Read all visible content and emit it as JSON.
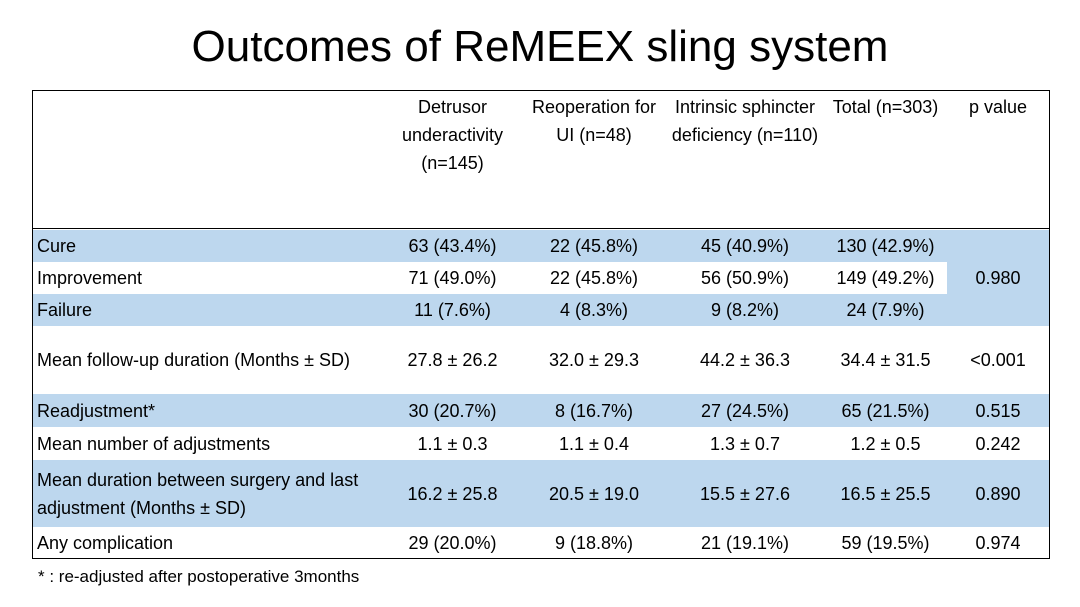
{
  "title": "Outcomes of ReMEEX sling system",
  "headers": [
    "",
    "Detrusor underactivity (n=145)",
    "Reoperation for UI (n=48)",
    "Intrinsic sphincter deficiency (n=110)",
    "Total (n=303)",
    "p value"
  ],
  "rows": [
    {
      "label": "Cure",
      "values": [
        "63 (43.4%)",
        "22 (45.8%)",
        "45 (40.9%)",
        "130 (42.9%)"
      ],
      "p": ""
    },
    {
      "label": "Improvement",
      "values": [
        "71 (49.0%)",
        "22 (45.8%)",
        "56 (50.9%)",
        "149 (49.2%)"
      ],
      "p": "0.980"
    },
    {
      "label": "Failure",
      "values": [
        "11 (7.6%)",
        "4 (8.3%)",
        "9 (8.2%)",
        "24 (7.9%)"
      ],
      "p": ""
    },
    {
      "label": "Mean follow-up duration (Months ± SD)",
      "values": [
        "27.8 ± 26.2",
        "32.0 ± 29.3",
        "44.2 ± 36.3",
        "34.4 ± 31.5"
      ],
      "p": "<0.001"
    },
    {
      "label": "Readjustment*",
      "values": [
        "30 (20.7%)",
        "8 (16.7%)",
        "27 (24.5%)",
        "65 (21.5%)"
      ],
      "p": "0.515"
    },
    {
      "label": "Mean number of adjustments",
      "values": [
        "1.1 ± 0.3",
        "1.1 ± 0.4",
        "1.3 ± 0.7",
        "1.2 ± 0.5"
      ],
      "p": "0.242"
    },
    {
      "label": "Mean duration between surgery and last adjustment (Months ± SD)",
      "values": [
        "16.2 ± 25.8",
        "20.5 ± 19.0",
        "15.5 ± 27.6",
        "16.5 ± 25.5"
      ],
      "p": "0.890"
    },
    {
      "label": "Any complication",
      "values": [
        "29 (20.0%)",
        "9 (18.8%)",
        "21 (19.1%)",
        "59 (19.5%)"
      ],
      "p": "0.974"
    }
  ],
  "footnote": "* : re-adjusted after postoperative 3months",
  "colors": {
    "band": "#bdd7ee",
    "white": "#ffffff"
  }
}
